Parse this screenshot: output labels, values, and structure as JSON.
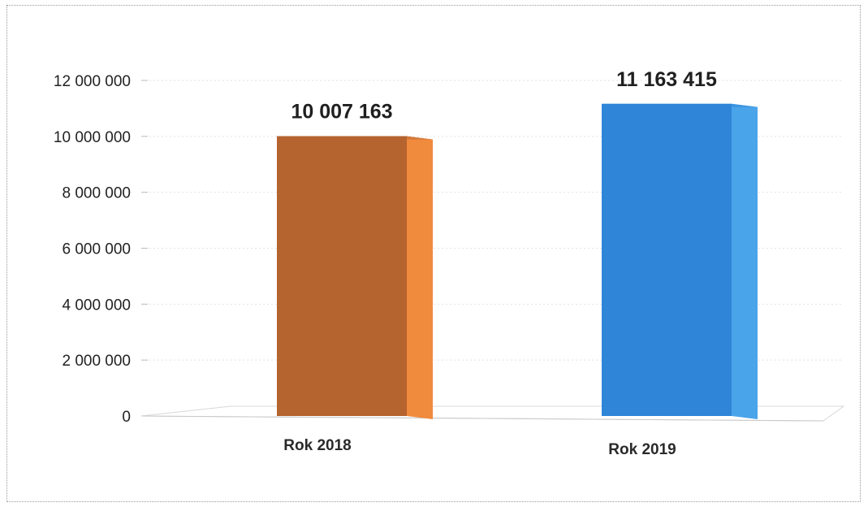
{
  "chart_data": {
    "type": "bar",
    "categories": [
      "Rok 2018",
      "Rok 2019"
    ],
    "values": [
      10007163,
      11163415
    ],
    "value_labels": [
      "10 007 163",
      "11 163 415"
    ],
    "ylim": [
      0,
      12000000
    ],
    "yticks": [
      0,
      2000000,
      4000000,
      6000000,
      8000000,
      10000000,
      12000000
    ],
    "ytick_labels": [
      "0",
      "2 000 000",
      "4 000 000",
      "6 000 000",
      "8 000 000",
      "10 000 000",
      "12 000 000"
    ],
    "title": "",
    "xlabel": "",
    "ylabel": "",
    "grid": true,
    "legend": "none",
    "style": "3d-column",
    "colors": [
      {
        "front": "#b5632f",
        "side": "#f08a3c",
        "top": "#d27a3e"
      },
      {
        "front": "#2f85d8",
        "side": "#4aa4ea",
        "top": "#3d94e0"
      }
    ]
  }
}
